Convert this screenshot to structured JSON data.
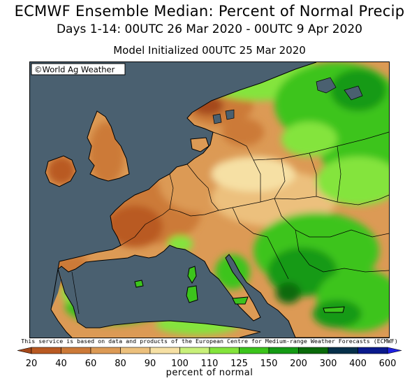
{
  "header": {
    "title": "ECMWF Ensemble Median: Percent of Normal Precip",
    "subtitle": "Days 1-14: 00UTC 26 Mar 2020 - 00UTC 9 Apr 2020",
    "init": "Model Initialized 00UTC 25 Mar 2020"
  },
  "map": {
    "watermark": "©World Ag Weather",
    "ocean_color": "#4a6070",
    "region": "Europe",
    "legend_colors_note": "dry (brown) west/central, wet (green) east and Mediterranean"
  },
  "credit": "This service is based on data and products of the European Centre for Medium-range Weather Forecasts (ECMWF)",
  "legend": {
    "title": "percent of normal",
    "colors": [
      "#a5481a",
      "#b95a22",
      "#cc7a38",
      "#dc9a55",
      "#ecc07d",
      "#f6e0a4",
      "#c8f07a",
      "#84e43c",
      "#3cc41c",
      "#149a14",
      "#0a6a0a",
      "#06304a",
      "#0a1a8c",
      "#1e20e0"
    ],
    "labels": [
      "20",
      "40",
      "60",
      "80",
      "90",
      "100",
      "110",
      "125",
      "150",
      "200",
      "300",
      "400",
      "600"
    ]
  }
}
